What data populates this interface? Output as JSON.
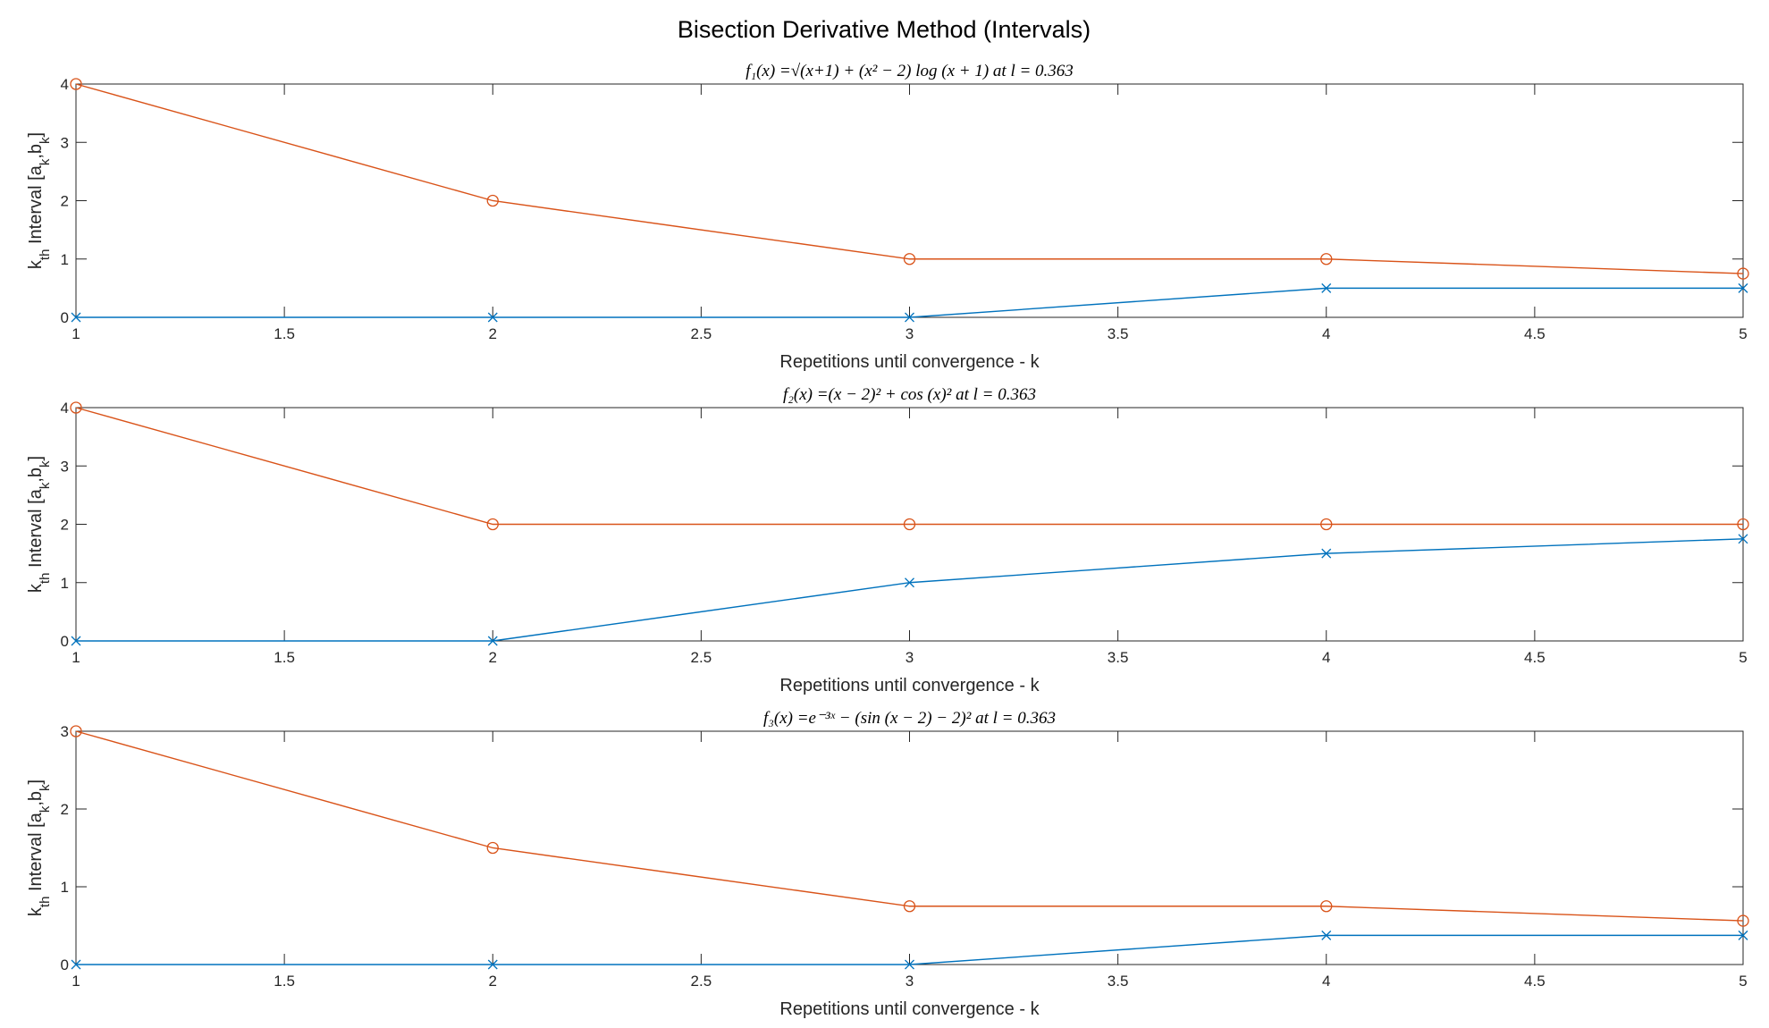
{
  "figure_title": "Bisection Derivative Method (Intervals)",
  "colors": {
    "a_series": "#0072BD",
    "b_series": "#D95319",
    "axes": "#262626"
  },
  "chart_data": [
    {
      "type": "line",
      "title": "f₁(x) =√(x+1) + (x² − 2) log (x + 1) at l = 0.363",
      "xlabel": "Repetitions until convergence - k",
      "ylabel": "k_th Interval [a_k,b_k]",
      "xlim": [
        1,
        5
      ],
      "ylim": [
        0,
        4
      ],
      "xticks": [
        1,
        1.5,
        2,
        2.5,
        3,
        3.5,
        4,
        4.5,
        5
      ],
      "xtick_labels": [
        "1",
        "1.5",
        "2",
        "2.5",
        "3",
        "3.5",
        "4",
        "4.5",
        "5"
      ],
      "yticks": [
        0,
        1,
        2,
        3,
        4
      ],
      "ytick_labels": [
        "0",
        "1",
        "2",
        "3",
        "4"
      ],
      "x": [
        1,
        2,
        3,
        4,
        5
      ],
      "series": [
        {
          "key": "a",
          "marker": "x",
          "values": [
            0,
            0,
            0,
            0.5,
            0.5
          ]
        },
        {
          "key": "b",
          "marker": "o",
          "values": [
            4,
            2,
            1,
            1,
            0.75
          ]
        }
      ],
      "grid": false
    },
    {
      "type": "line",
      "title": "f₂(x) =(x − 2)² + cos (x)² at l = 0.363",
      "xlabel": "Repetitions until convergence - k",
      "ylabel": "k_th Interval [a_k,b_k]",
      "xlim": [
        1,
        5
      ],
      "ylim": [
        0,
        4
      ],
      "xticks": [
        1,
        1.5,
        2,
        2.5,
        3,
        3.5,
        4,
        4.5,
        5
      ],
      "xtick_labels": [
        "1",
        "1.5",
        "2",
        "2.5",
        "3",
        "3.5",
        "4",
        "4.5",
        "5"
      ],
      "yticks": [
        0,
        1,
        2,
        3,
        4
      ],
      "ytick_labels": [
        "0",
        "1",
        "2",
        "3",
        "4"
      ],
      "x": [
        1,
        2,
        3,
        4,
        5
      ],
      "series": [
        {
          "key": "a",
          "marker": "x",
          "values": [
            0,
            0,
            1,
            1.5,
            1.75
          ]
        },
        {
          "key": "b",
          "marker": "o",
          "values": [
            4,
            2,
            2,
            2,
            2
          ]
        }
      ],
      "grid": false
    },
    {
      "type": "line",
      "title": "f₃(x) =e⁻³ˣ − (sin (x − 2) − 2)² at l = 0.363",
      "xlabel": "Repetitions until convergence - k",
      "ylabel": "k_th Interval [a_k,b_k]",
      "xlim": [
        1,
        5
      ],
      "ylim": [
        0,
        3
      ],
      "xticks": [
        1,
        1.5,
        2,
        2.5,
        3,
        3.5,
        4,
        4.5,
        5
      ],
      "xtick_labels": [
        "1",
        "1.5",
        "2",
        "2.5",
        "3",
        "3.5",
        "4",
        "4.5",
        "5"
      ],
      "yticks": [
        0,
        1,
        2,
        3
      ],
      "ytick_labels": [
        "0",
        "1",
        "2",
        "3"
      ],
      "x": [
        1,
        2,
        3,
        4,
        5
      ],
      "series": [
        {
          "key": "a",
          "marker": "x",
          "values": [
            0,
            0,
            0,
            0.375,
            0.375
          ]
        },
        {
          "key": "b",
          "marker": "o",
          "values": [
            3,
            1.5,
            0.75,
            0.75,
            0.5625
          ]
        }
      ],
      "grid": false
    }
  ]
}
